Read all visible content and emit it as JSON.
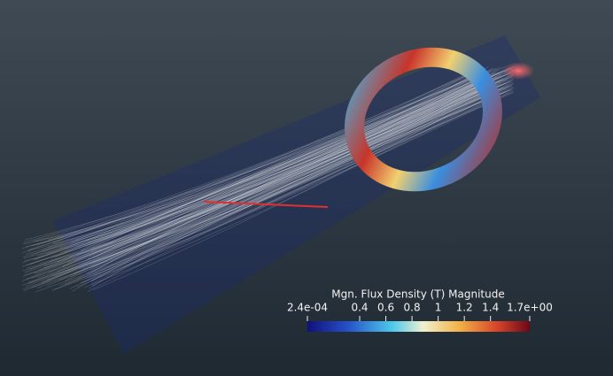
{
  "colorbar": {
    "title": "Mgn. Flux Density (T) Magnitude",
    "range": [
      0.00024,
      1.7
    ],
    "ticks": [
      {
        "value": 0.00024,
        "label": "2.4e-04"
      },
      0.4,
      0.6,
      0.8,
      1,
      1.2,
      1.4,
      {
        "value": 1.7,
        "label": "1.7e+00"
      }
    ]
  }
}
